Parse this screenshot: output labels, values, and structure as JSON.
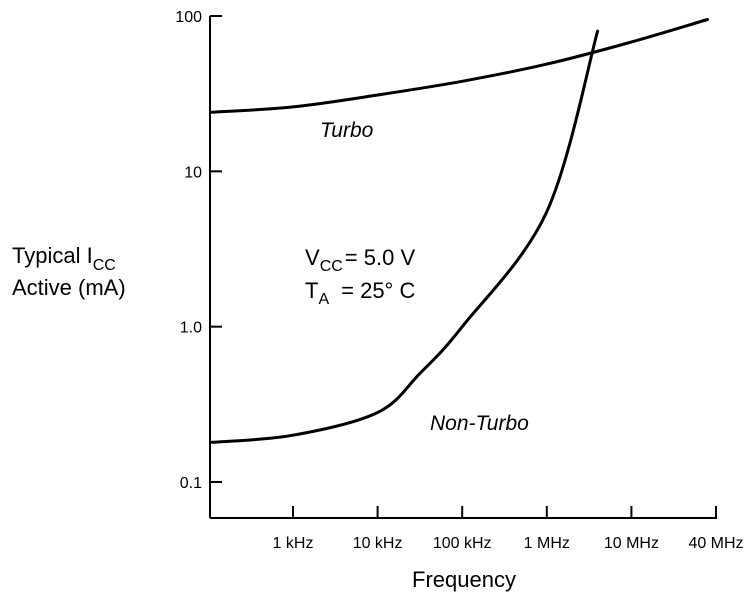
{
  "chart_data": {
    "type": "line",
    "title": "",
    "xlabel": "Frequency",
    "ylabel": {
      "line1_main": "Typical I",
      "line1_sub": "CC",
      "line2": "Active (mA)"
    },
    "y_scale": "log",
    "ylim": [
      0.1,
      100
    ],
    "y_ticks": [
      {
        "value": 100,
        "label": "100"
      },
      {
        "value": 10,
        "label": "10"
      },
      {
        "value": 1,
        "label": "1.0"
      },
      {
        "value": 0.1,
        "label": "0.1"
      }
    ],
    "x_categories": [
      "1 kHz",
      "10 kHz",
      "100 kHz",
      "1 MHz",
      "10 MHz",
      "40 MHz"
    ],
    "grid": false,
    "legend": "none",
    "series": [
      {
        "name": "Turbo",
        "x": [
          0.3,
          1,
          2,
          3,
          4,
          5,
          5.9
        ],
        "y": [
          24,
          26,
          31,
          38,
          49,
          68,
          95
        ]
      },
      {
        "name": "Non-Turbo",
        "x": [
          0.3,
          1,
          2,
          2.5,
          3,
          4,
          4.6
        ],
        "y": [
          0.18,
          0.2,
          0.28,
          0.5,
          1.0,
          5.5,
          80
        ]
      }
    ],
    "annotations": {
      "vcc_main": "V",
      "vcc_sub": "CC",
      "vcc_value": "= 5.0 V",
      "ta_main": "T",
      "ta_sub": "A",
      "ta_value": "= 25° C"
    },
    "line_color": "#000000"
  }
}
